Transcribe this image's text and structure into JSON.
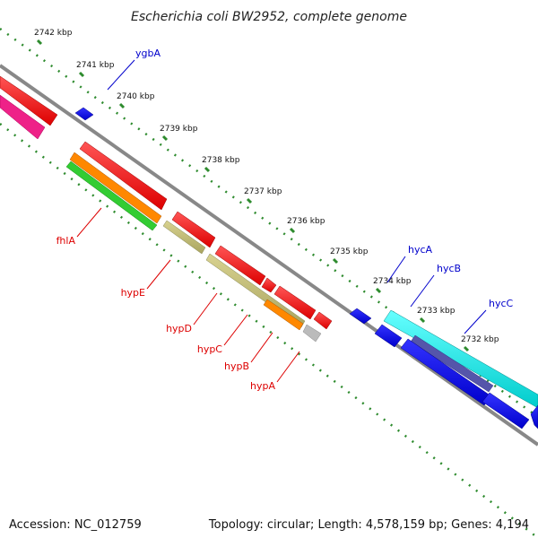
{
  "title": "Escherichia coli BW2952, complete genome",
  "ticks": [
    "2742 kbp",
    "2741 kbp",
    "2740 kbp",
    "2739 kbp",
    "2738 kbp",
    "2737 kbp",
    "2736 kbp",
    "2735 kbp",
    "2734 kbp",
    "2733 kbp",
    "2732 kbp"
  ],
  "genes_forward": [
    "ygbA",
    "hycA",
    "hycB",
    "hycC"
  ],
  "genes_reverse": [
    "fhlA",
    "hypE",
    "hypD",
    "hypC",
    "hypB",
    "hypA"
  ],
  "colors": {
    "backbone": "#888888",
    "tick_dots": "#2e8b2e",
    "cds_reverse": "#ee0000",
    "cds_forward": "#0000ee",
    "gene_forward_cyan": "#00dddd",
    "gene_reverse_khaki": "#bdb76b",
    "orange": "#ff8800",
    "green": "#33cc33",
    "magenta": "#ee2288",
    "purple": "#5555aa",
    "grey": "#bbbbbb",
    "label_forward": "#0000cc",
    "label_reverse": "#dd0000"
  },
  "footer": {
    "accession": "Accession: NC_012759",
    "stats": "Topology: circular; Length: 4,578,159 bp; Genes: 4,194"
  }
}
